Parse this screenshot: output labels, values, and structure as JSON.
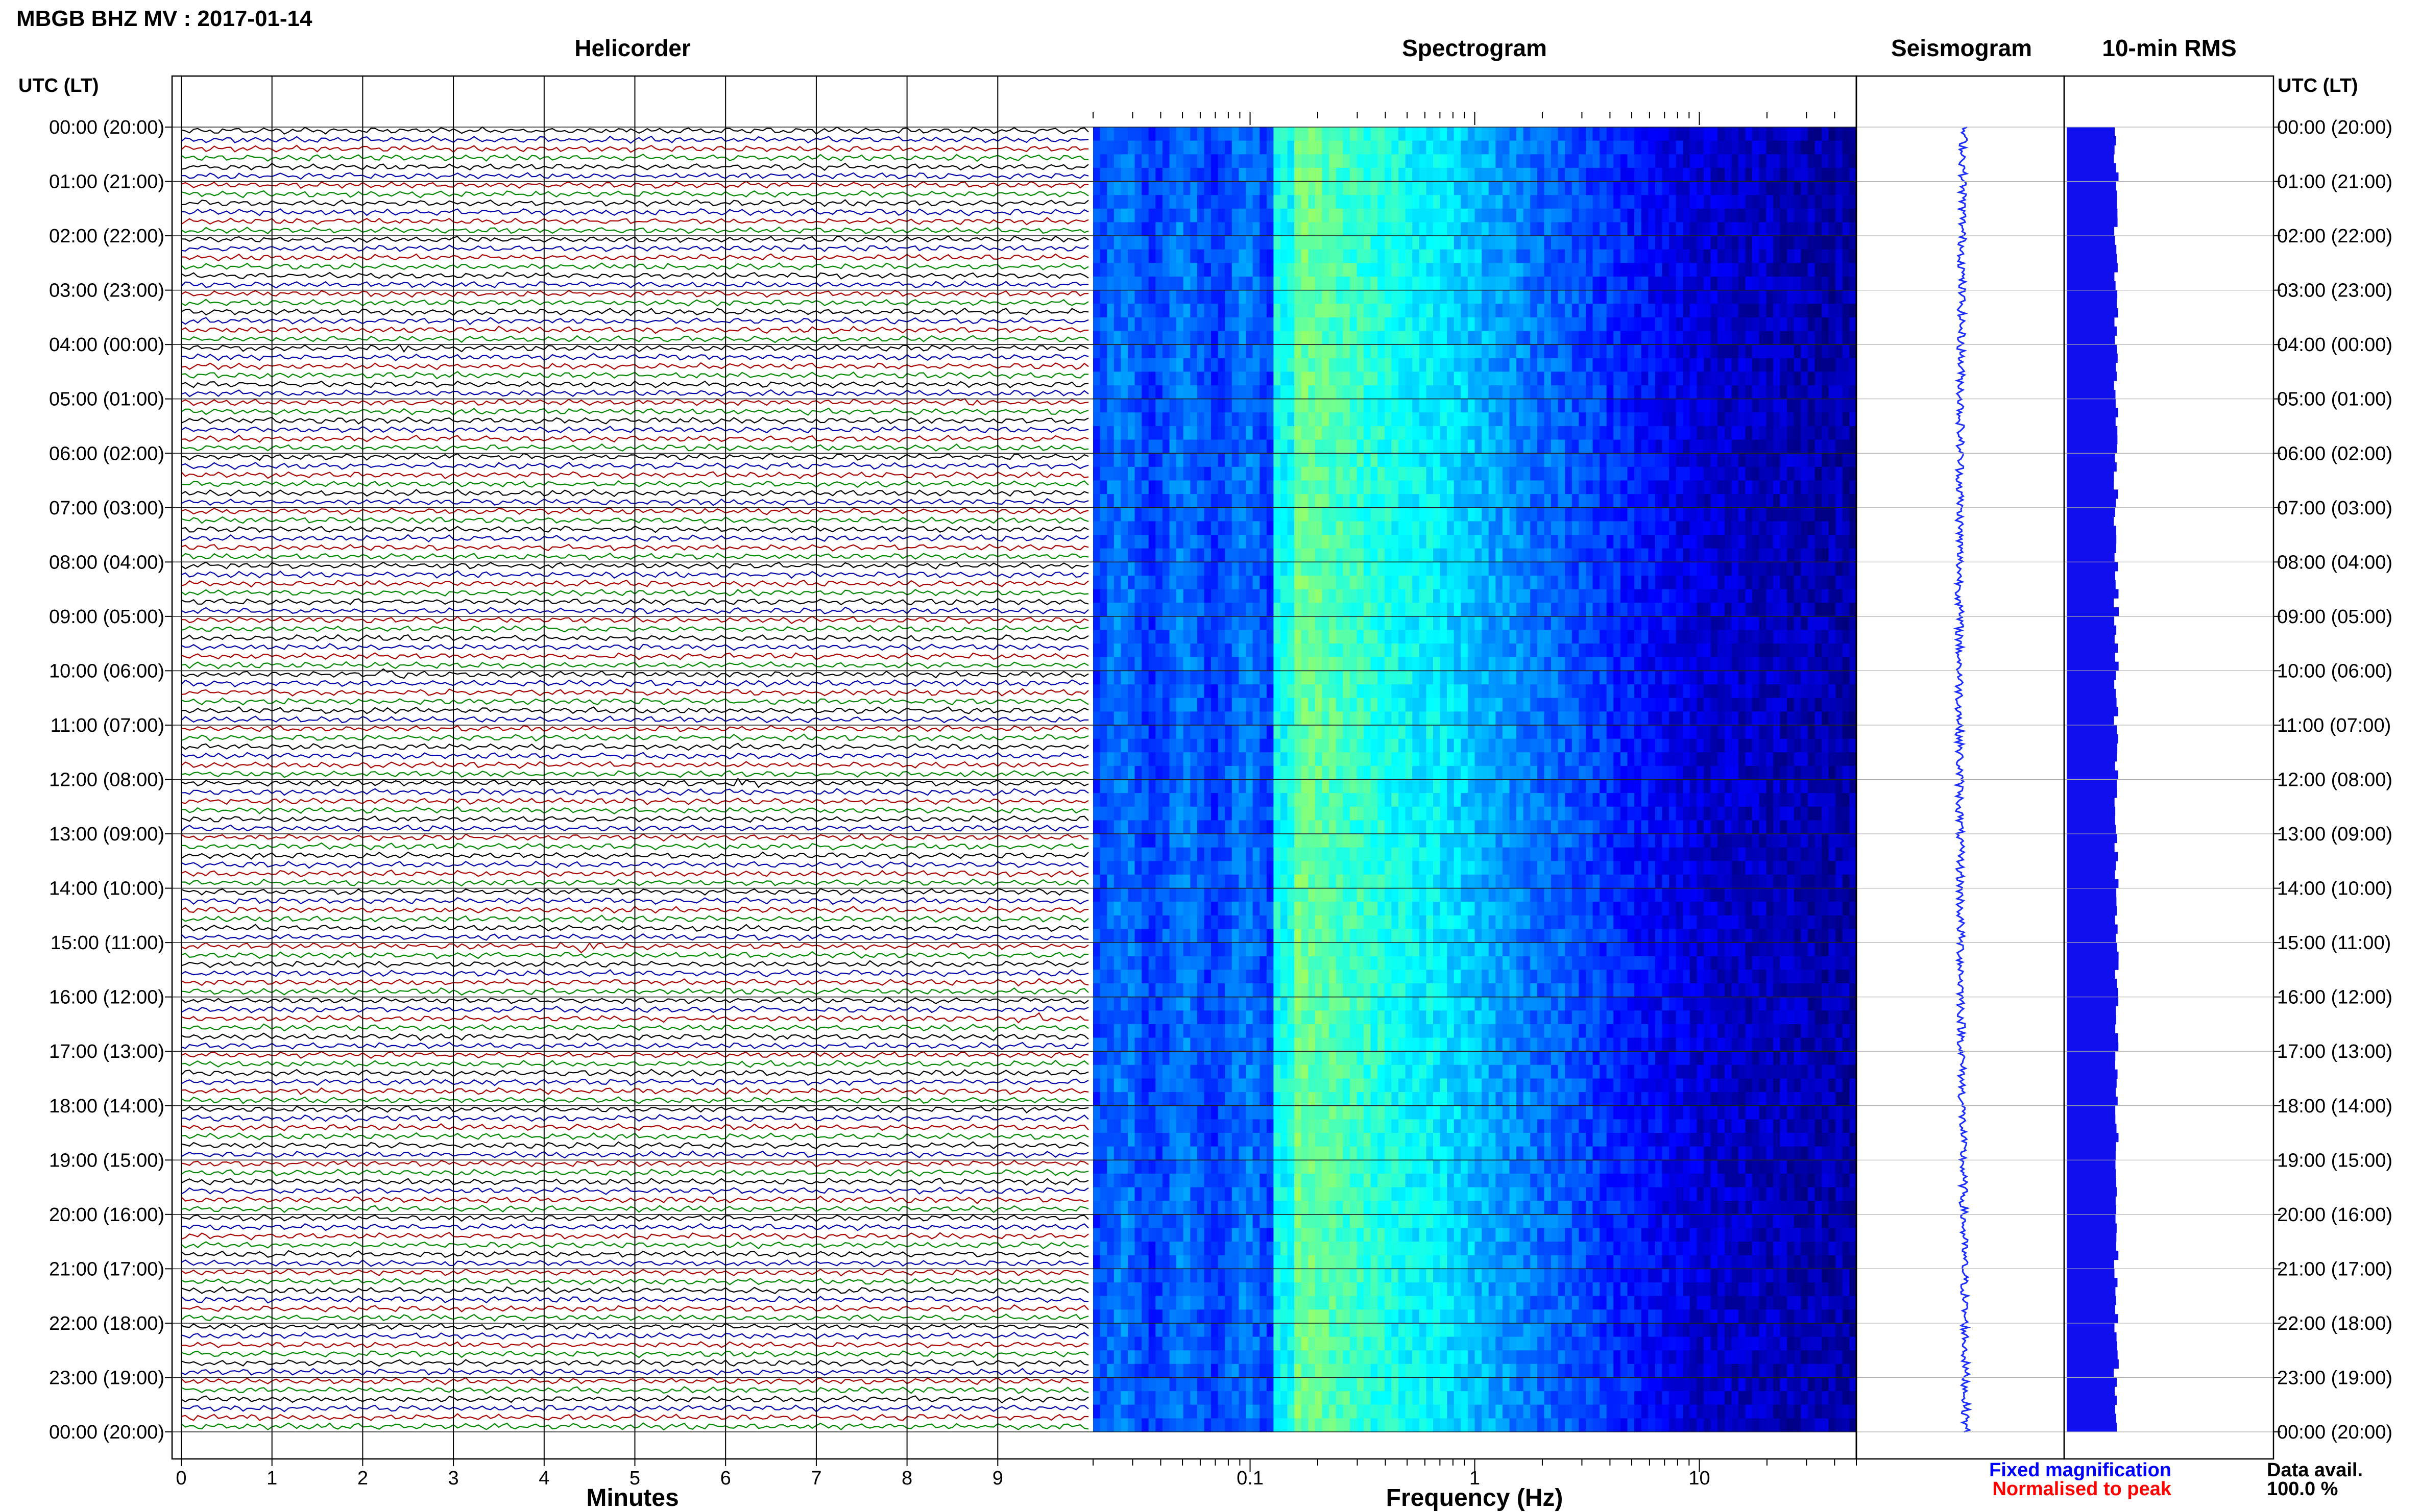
{
  "title": "MBGB BHZ MV : 2017-01-14",
  "panel_titles": {
    "helicorder": "Helicorder",
    "spectrogram": "Spectrogram",
    "seismogram": "Seismogram",
    "rms": "10-min RMS"
  },
  "utc_label": "UTC (LT)",
  "time_labels": [
    "00:00 (20:00)",
    "01:00 (21:00)",
    "02:00 (22:00)",
    "03:00 (23:00)",
    "04:00 (00:00)",
    "05:00 (01:00)",
    "06:00 (02:00)",
    "07:00 (03:00)",
    "08:00 (04:00)",
    "09:00 (05:00)",
    "10:00 (06:00)",
    "11:00 (07:00)",
    "12:00 (08:00)",
    "13:00 (09:00)",
    "14:00 (10:00)",
    "15:00 (11:00)",
    "16:00 (12:00)",
    "17:00 (13:00)",
    "18:00 (14:00)",
    "19:00 (15:00)",
    "20:00 (16:00)",
    "21:00 (17:00)",
    "22:00 (18:00)",
    "23:00 (19:00)",
    "00:00 (20:00)"
  ],
  "legend": {
    "fixed": "Fixed magnification",
    "normalised": "Normalised to peak",
    "avail_label": "Data avail.",
    "avail_value": "100.0 %"
  },
  "colors": {
    "text": "#000000",
    "grid": "#000000",
    "fixed": "#0000ff",
    "normalised": "#ff0000",
    "seismogram": "#1a2bff",
    "rms": "#1010ee",
    "trace_cycle": [
      "#000000",
      "#0000aa",
      "#aa0000",
      "#008800"
    ]
  },
  "chart_data": [
    {
      "type": "line",
      "name": "helicorder",
      "title": "Helicorder",
      "xlabel": "Minutes",
      "x_ticks": [
        0,
        1,
        2,
        3,
        4,
        5,
        6,
        7,
        8,
        9
      ],
      "xlim": [
        0,
        10
      ],
      "rows": 144,
      "rows_per_hour": 6,
      "events": [
        {
          "hour": 4.0,
          "minute": 2.5
        },
        {
          "hour": 5.0,
          "minute": 8.6
        },
        {
          "hour": 10.0,
          "minute": 2.3
        },
        {
          "hour": 12.0,
          "minute": 6.2
        },
        {
          "hour": 15.0,
          "minute": 4.1
        },
        {
          "hour": 15.0,
          "minute": 4.4
        },
        {
          "hour": 15.0,
          "minute": 5.0
        },
        {
          "hour": 16.3,
          "minute": 9.4
        }
      ]
    },
    {
      "type": "heatmap",
      "name": "spectrogram",
      "title": "Spectrogram",
      "xlabel": "Frequency (Hz)",
      "x_scale": "log",
      "xlim": [
        0.02,
        50
      ],
      "x_tick_labels": [
        "0.1",
        "1",
        "10"
      ],
      "x_tick_values": [
        0.1,
        1,
        10
      ],
      "colormap": [
        "#00007f",
        "#0000ff",
        "#0080ff",
        "#00ffff",
        "#80ff80",
        "#ffff00"
      ],
      "dominant_band_hz": [
        0.15,
        0.6
      ]
    },
    {
      "type": "line",
      "name": "seismogram",
      "title": "Seismogram"
    },
    {
      "type": "bar",
      "name": "rms",
      "title": "10-min RMS",
      "bins": 144,
      "level_relative": 1.0
    }
  ]
}
